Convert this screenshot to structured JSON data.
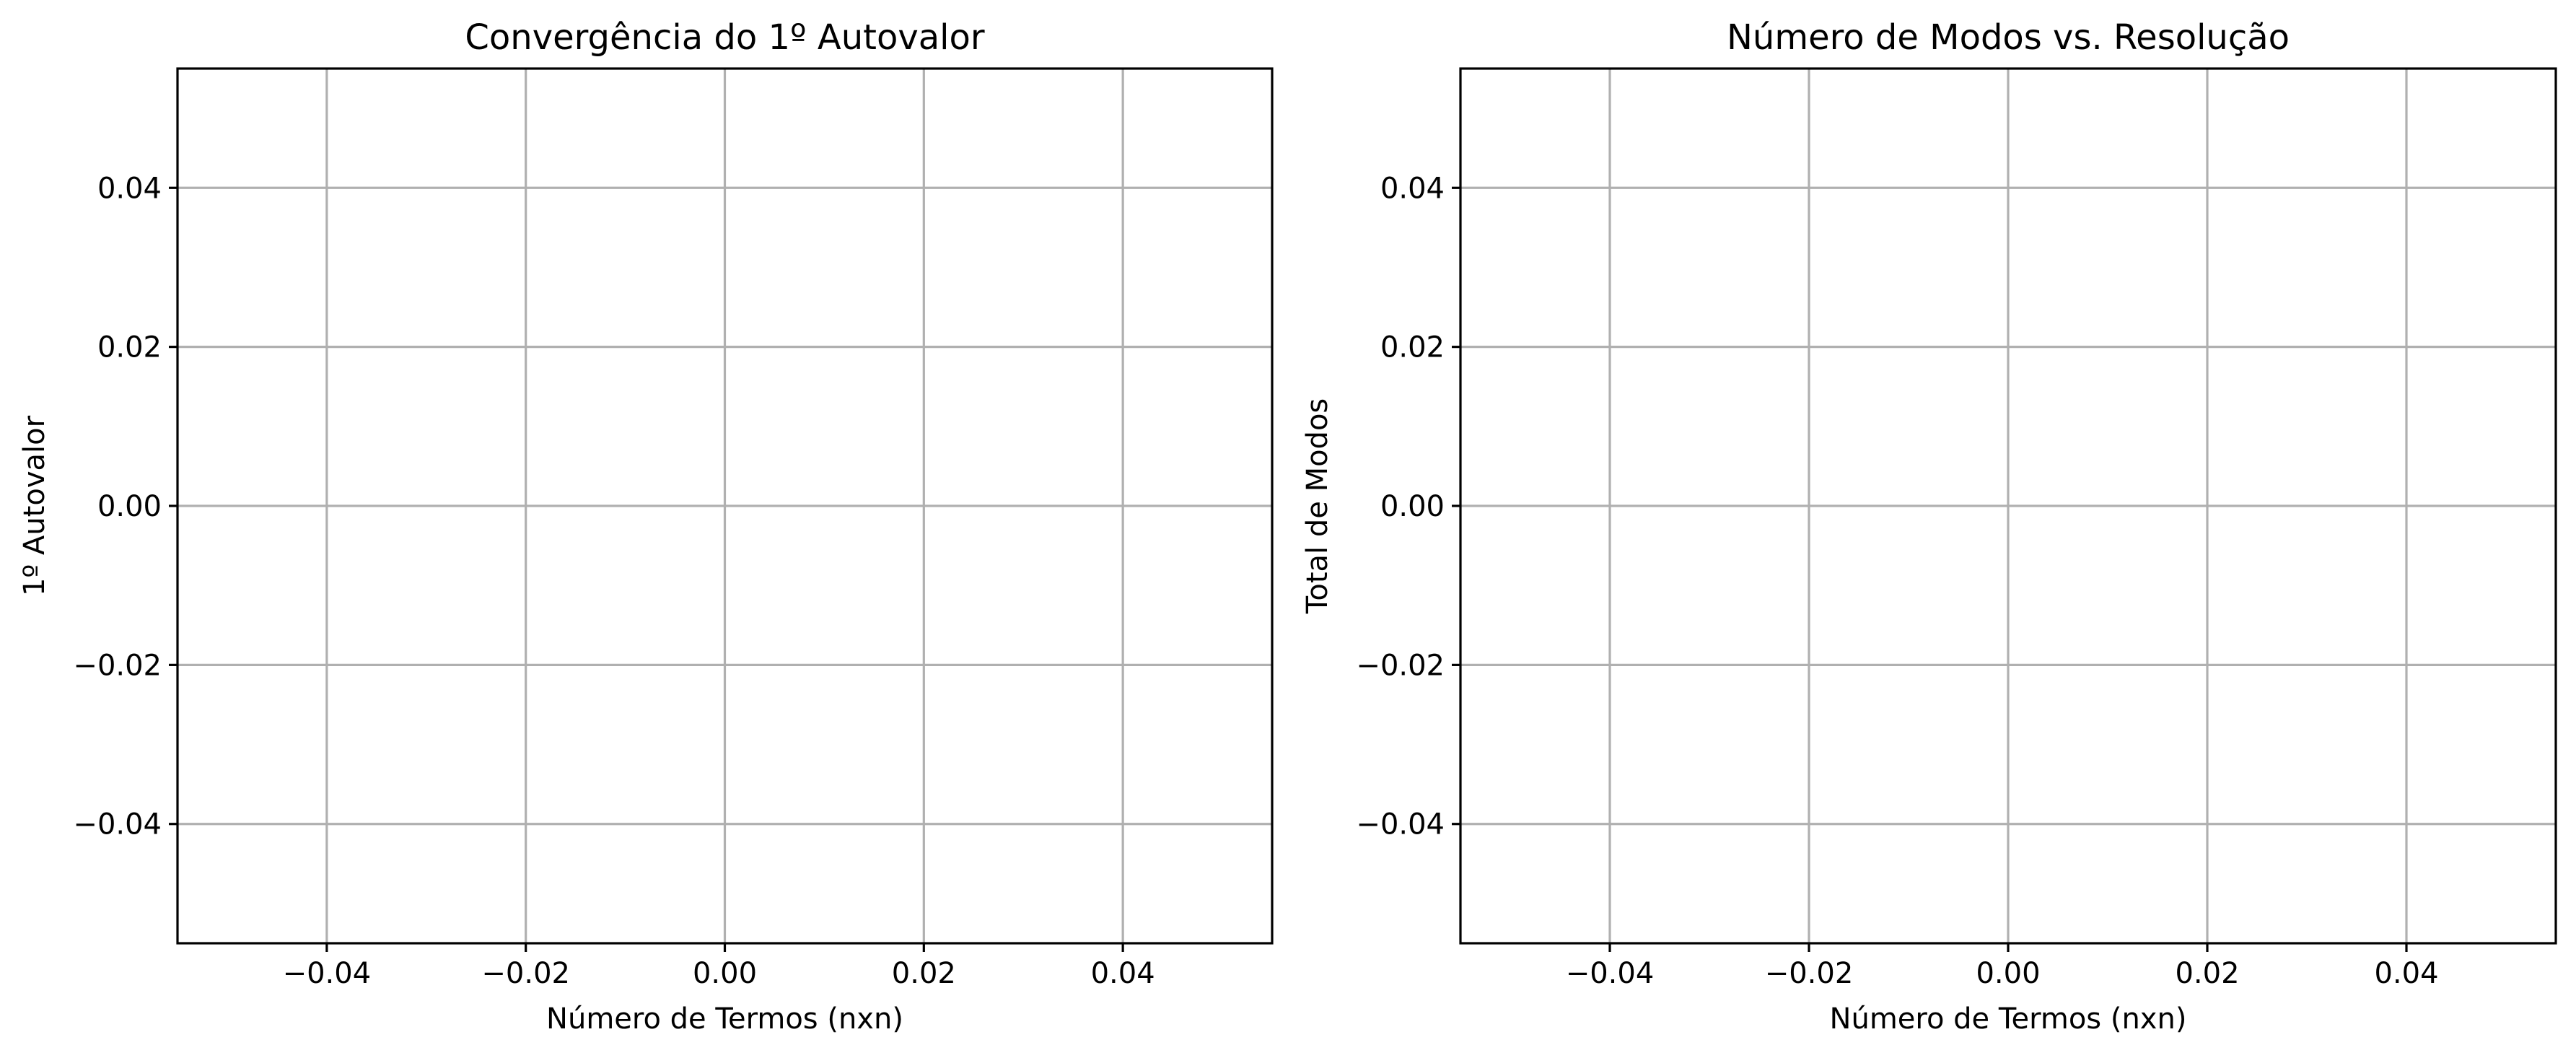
{
  "chart_data": [
    {
      "type": "line",
      "title": "Convergência do 1º Autovalor",
      "xlabel": "Número de Termos (nxn)",
      "ylabel": "1º Autovalor",
      "x": [],
      "series": [],
      "xlim": [
        -0.055,
        0.055
      ],
      "ylim": [
        -0.055,
        0.055
      ],
      "xticks": [
        -0.04,
        -0.02,
        0.0,
        0.02,
        0.04
      ],
      "yticks": [
        -0.04,
        -0.02,
        0.0,
        0.02,
        0.04
      ],
      "xtick_labels": [
        "−0.04",
        "−0.02",
        "0.00",
        "0.02",
        "0.04"
      ],
      "ytick_labels": [
        "−0.04",
        "−0.02",
        "0.00",
        "0.02",
        "0.04"
      ],
      "grid": true
    },
    {
      "type": "line",
      "title": "Número de Modos vs. Resolução",
      "xlabel": "Número de Termos (nxn)",
      "ylabel": "Total de Modos",
      "x": [],
      "series": [],
      "xlim": [
        -0.055,
        0.055
      ],
      "ylim": [
        -0.055,
        0.055
      ],
      "xticks": [
        -0.04,
        -0.02,
        0.0,
        0.02,
        0.04
      ],
      "yticks": [
        -0.04,
        -0.02,
        0.0,
        0.02,
        0.04
      ],
      "xtick_labels": [
        "−0.04",
        "−0.02",
        "0.00",
        "0.02",
        "0.04"
      ],
      "ytick_labels": [
        "−0.04",
        "−0.02",
        "0.00",
        "0.02",
        "0.04"
      ],
      "grid": true
    }
  ]
}
